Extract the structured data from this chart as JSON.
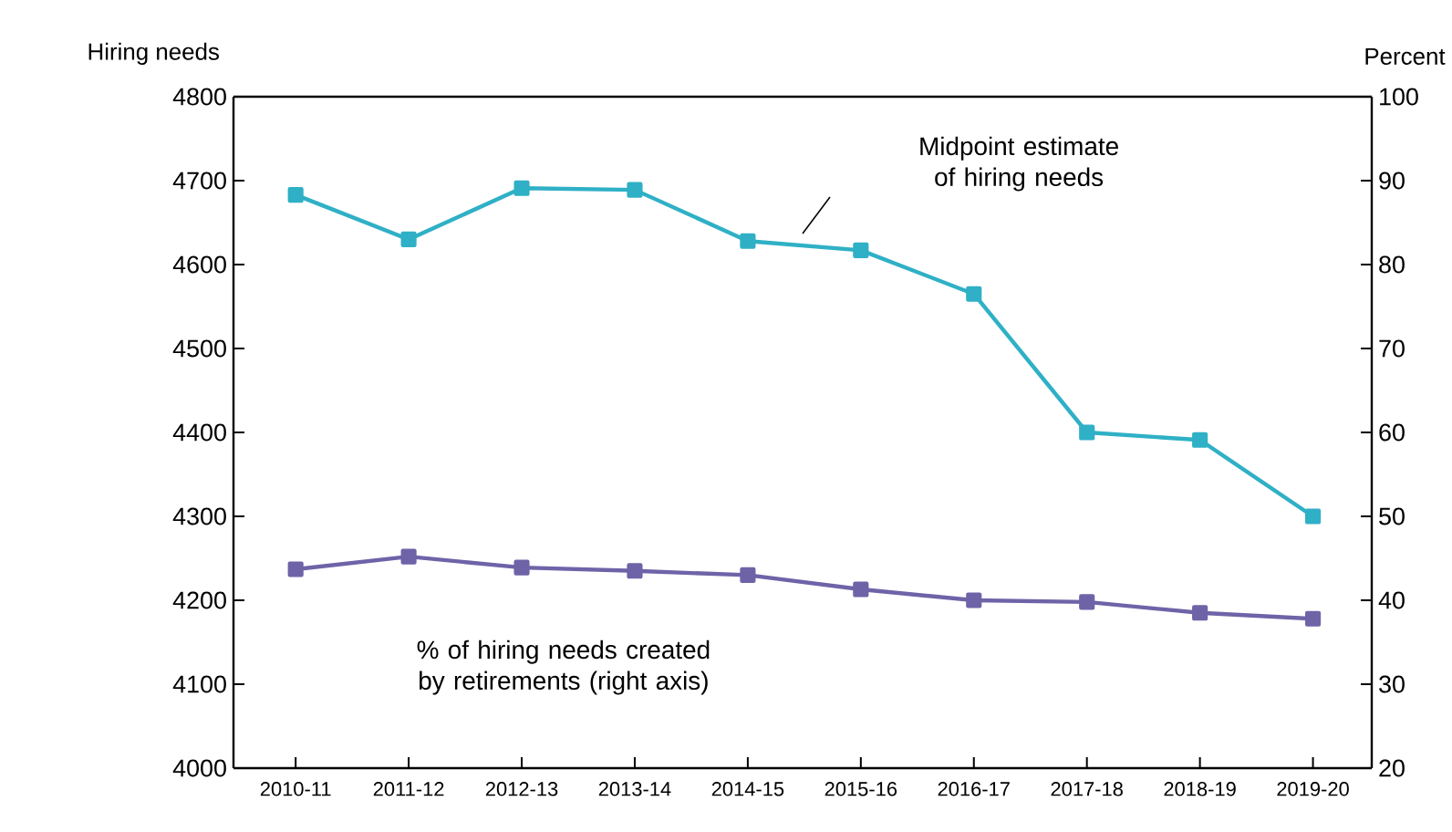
{
  "chart_data": {
    "type": "line",
    "ylabel": "Hiring needs",
    "y2label": "Percent",
    "categories": [
      "2010-11",
      "2011-12",
      "2012-13",
      "2013-14",
      "2014-15",
      "2015-16",
      "2016-17",
      "2017-18",
      "2018-19",
      "2019-20"
    ],
    "series": [
      {
        "color": "#2fb0c6",
        "values": [
          4683,
          4630,
          4691,
          4689,
          4628,
          4617,
          4565,
          4400,
          4391,
          4300
        ]
      },
      {
        "color": "#6f63a8",
        "axis": "y2",
        "values": [
          43.7,
          45.2,
          43.9,
          43.5,
          43.0,
          41.3,
          40.0,
          39.8,
          38.5,
          37.8
        ]
      }
    ],
    "ylim": [
      4000,
      4800
    ],
    "yticks": [
      4000,
      4100,
      4200,
      4300,
      4400,
      4500,
      4600,
      4700,
      4800
    ],
    "y2lim": [
      20,
      100
    ],
    "y2ticks": [
      20,
      30,
      40,
      50,
      60,
      70,
      80,
      90,
      100
    ],
    "annotations": [
      "Midpoint estimate of hiring needs",
      "% of hiring needs created by retirements (right axis)"
    ],
    "marker": "square",
    "line_style": "solid",
    "grid": false
  }
}
